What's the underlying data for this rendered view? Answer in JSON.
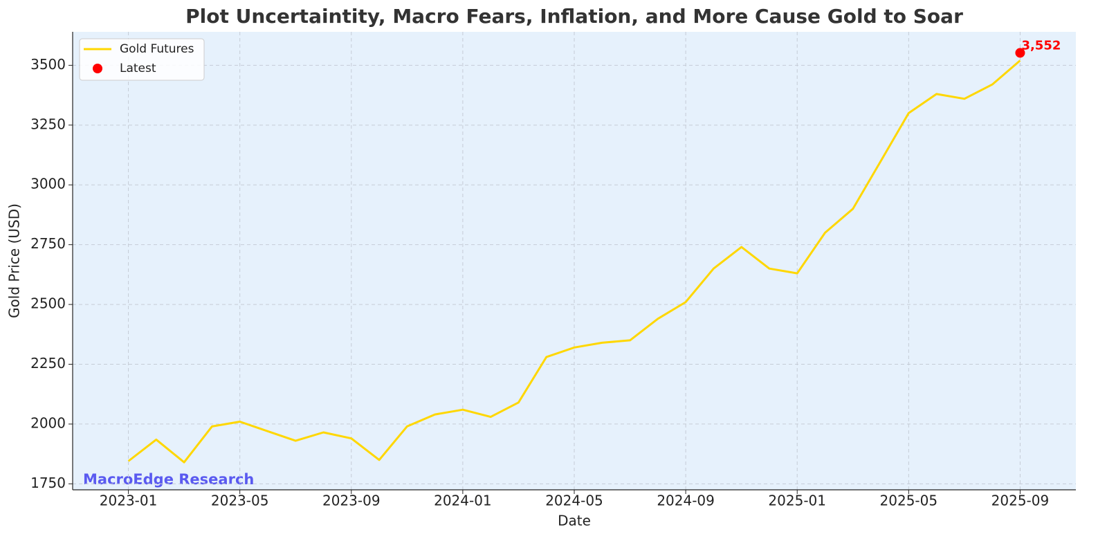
{
  "chart_data": {
    "type": "line",
    "title": "Plot Uncertaintity, Macro Fears, Inflation, and More Cause Gold to Soar",
    "xlabel": "Date",
    "ylabel": "Gold Price (USD)",
    "watermark": "MacroEdge Research",
    "x": [
      "2023-01",
      "2023-02",
      "2023-03",
      "2023-04",
      "2023-05",
      "2023-06",
      "2023-07",
      "2023-08",
      "2023-09",
      "2023-10",
      "2023-11",
      "2023-12",
      "2024-01",
      "2024-02",
      "2024-03",
      "2024-04",
      "2024-05",
      "2024-06",
      "2024-07",
      "2024-08",
      "2024-09",
      "2024-10",
      "2024-11",
      "2024-12",
      "2025-01",
      "2025-02",
      "2025-03",
      "2025-04",
      "2025-05",
      "2025-06",
      "2025-07",
      "2025-08",
      "2025-09"
    ],
    "series": [
      {
        "name": "Gold Futures",
        "color": "#FFD700",
        "values": [
          1845,
          1935,
          1840,
          1990,
          2010,
          1970,
          1930,
          1965,
          1940,
          1850,
          1990,
          2040,
          2060,
          2030,
          2090,
          2280,
          2320,
          2340,
          2350,
          2440,
          2510,
          2650,
          2740,
          2650,
          2630,
          2800,
          2900,
          3100,
          3300,
          3380,
          3360,
          3420,
          3520
        ]
      },
      {
        "name": "Latest",
        "color": "#ff0000",
        "marker": "point",
        "x": [
          "2025-09"
        ],
        "values": [
          3552
        ],
        "value_labels": [
          "3,552"
        ]
      }
    ],
    "xlim": [
      "2022-11",
      "2025-11"
    ],
    "xticks": [
      "2023-01",
      "2023-05",
      "2023-09",
      "2024-01",
      "2024-05",
      "2024-09",
      "2025-01",
      "2025-05",
      "2025-09"
    ],
    "ylim": [
      1725,
      3640
    ],
    "yticks": [
      1750,
      2000,
      2250,
      2500,
      2750,
      3000,
      3250,
      3500
    ],
    "grid": true,
    "legend": "upper left"
  }
}
